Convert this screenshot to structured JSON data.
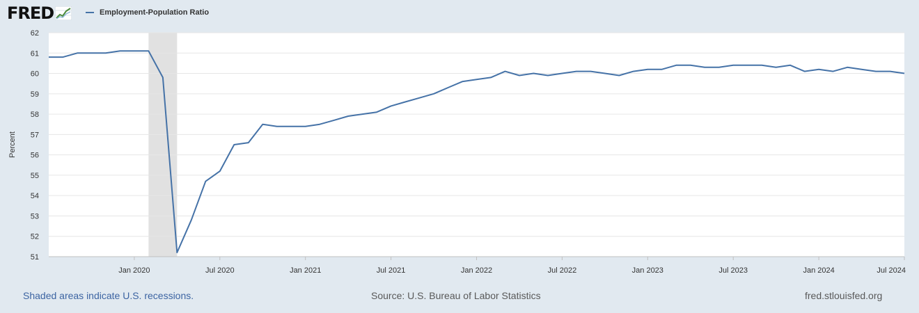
{
  "header": {
    "logo_text": "FRED",
    "logo_icon": "fred-graph-icon"
  },
  "legend": {
    "label": "Employment-Population Ratio",
    "color": "#4572a7"
  },
  "colors": {
    "line": "#4572a7",
    "recession_shade": "#e1e1e1",
    "plot_background": "#ffffff",
    "page_background": "#e1e9f0",
    "grid": "#e6e6e6"
  },
  "footer": {
    "recession_note": "Shaded areas indicate U.S. recessions.",
    "source": "Source: U.S. Bureau of Labor Statistics",
    "site": "fred.stlouisfed.org"
  },
  "chart_data": {
    "type": "line",
    "ylabel": "Percent",
    "ylim": [
      51,
      62
    ],
    "yticks": [
      51,
      52,
      53,
      54,
      55,
      56,
      57,
      58,
      59,
      60,
      61,
      62
    ],
    "xlim": [
      "2019-07",
      "2024-07"
    ],
    "xtick_labels": [
      "Jan 2020",
      "Jul 2020",
      "Jan 2021",
      "Jul 2021",
      "Jan 2022",
      "Jul 2022",
      "Jan 2023",
      "Jul 2023",
      "Jan 2024",
      "Jul 2024"
    ],
    "xtick_dates": [
      "2020-01",
      "2020-07",
      "2021-01",
      "2021-07",
      "2022-01",
      "2022-07",
      "2023-01",
      "2023-07",
      "2024-01",
      "2024-07"
    ],
    "grid": true,
    "recessions": [
      {
        "start": "2020-02",
        "end": "2020-04"
      }
    ],
    "series": [
      {
        "name": "Employment-Population Ratio",
        "x": [
          "2019-07",
          "2019-08",
          "2019-09",
          "2019-10",
          "2019-11",
          "2019-12",
          "2020-01",
          "2020-02",
          "2020-03",
          "2020-04",
          "2020-05",
          "2020-06",
          "2020-07",
          "2020-08",
          "2020-09",
          "2020-10",
          "2020-11",
          "2020-12",
          "2021-01",
          "2021-02",
          "2021-03",
          "2021-04",
          "2021-05",
          "2021-06",
          "2021-07",
          "2021-08",
          "2021-09",
          "2021-10",
          "2021-11",
          "2021-12",
          "2022-01",
          "2022-02",
          "2022-03",
          "2022-04",
          "2022-05",
          "2022-06",
          "2022-07",
          "2022-08",
          "2022-09",
          "2022-10",
          "2022-11",
          "2022-12",
          "2023-01",
          "2023-02",
          "2023-03",
          "2023-04",
          "2023-05",
          "2023-06",
          "2023-07",
          "2023-08",
          "2023-09",
          "2023-10",
          "2023-11",
          "2023-12",
          "2024-01",
          "2024-02",
          "2024-03",
          "2024-04",
          "2024-05",
          "2024-06",
          "2024-07"
        ],
        "values": [
          60.8,
          60.8,
          61.0,
          61.0,
          61.0,
          61.1,
          61.1,
          61.1,
          59.8,
          51.2,
          52.8,
          54.7,
          55.2,
          56.5,
          56.6,
          57.5,
          57.4,
          57.4,
          57.4,
          57.5,
          57.7,
          57.9,
          58.0,
          58.1,
          58.4,
          58.6,
          58.8,
          59.0,
          59.3,
          59.6,
          59.7,
          59.8,
          60.1,
          59.9,
          60.0,
          59.9,
          60.0,
          60.1,
          60.1,
          60.0,
          59.9,
          60.1,
          60.2,
          60.2,
          60.4,
          60.4,
          60.3,
          60.3,
          60.4,
          60.4,
          60.4,
          60.3,
          60.4,
          60.1,
          60.2,
          60.1,
          60.3,
          60.2,
          60.1,
          60.1,
          60.0
        ]
      }
    ]
  }
}
